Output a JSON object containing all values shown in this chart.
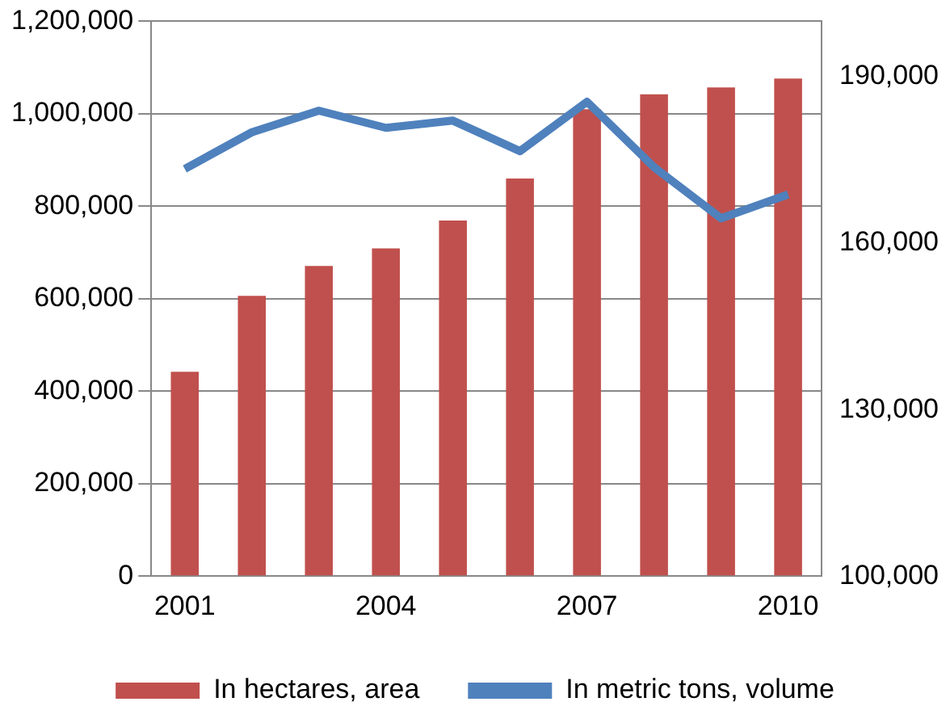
{
  "chart_data": {
    "type": "bar",
    "categories": [
      "2001",
      null,
      null,
      "2004",
      null,
      null,
      "2007",
      null,
      null,
      "2010"
    ],
    "series": [
      {
        "name": "In hectares, area",
        "color": "#c0504d",
        "values": [
          442000,
          606000,
          671000,
          709000,
          769000,
          860000,
          1010000,
          1042000,
          1057000,
          1076000
        ]
      },
      {
        "name": "In metric tons, volume",
        "type": "line",
        "axis": "y2",
        "color": "#4f81bd",
        "values": [
          173400,
          180000,
          183900,
          180800,
          182100,
          176600,
          185500,
          173700,
          164500,
          168800
        ]
      }
    ],
    "ylim": [
      0,
      1200000
    ],
    "yticks": [
      {
        "value": 0,
        "label": "0"
      },
      {
        "value": 200000,
        "label": "200,000"
      },
      {
        "value": 400000,
        "label": "400,000"
      },
      {
        "value": 600000,
        "label": "600,000"
      },
      {
        "value": 800000,
        "label": "800,000"
      },
      {
        "value": 1000000,
        "label": "1,000,000"
      },
      {
        "value": 1200000,
        "label": "1,200,000"
      }
    ],
    "y2lim": [
      100000,
      200000
    ],
    "y2ticks": [
      {
        "value": 100000,
        "label": "100,000"
      },
      {
        "value": 130000,
        "label": "130,000"
      },
      {
        "value": 160000,
        "label": "160,000"
      },
      {
        "value": 190000,
        "label": "190,000"
      }
    ],
    "grid": "y",
    "legend": "bottom",
    "marker": "none"
  }
}
